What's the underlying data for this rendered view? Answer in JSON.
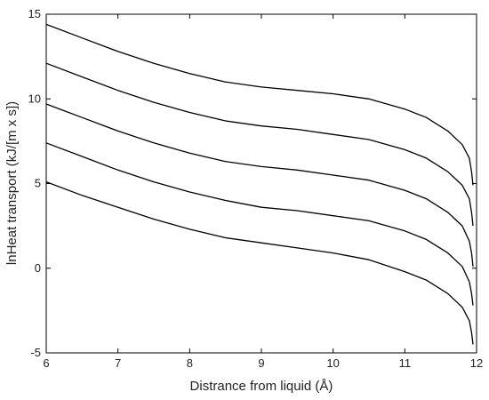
{
  "chart_data": {
    "type": "line",
    "title": "",
    "xlabel": "Distrance from liquid (Å)",
    "ylabel": "lnHeat transport (kJ/[m x s])",
    "xlim": [
      6,
      12
    ],
    "ylim": [
      -5,
      15
    ],
    "x_ticks": [
      "6",
      "7",
      "8",
      "9",
      "10",
      "11",
      "12"
    ],
    "y_ticks": [
      "-5",
      "0",
      "5",
      "10",
      "15"
    ],
    "grid": false,
    "legend": "none",
    "line_color": "#000000",
    "series": [
      {
        "x": [
          6.0,
          6.5,
          7.0,
          7.5,
          8.0,
          8.5,
          9.0,
          9.5,
          10.0,
          10.5,
          11.0,
          11.3,
          11.6,
          11.8,
          11.9,
          11.93,
          11.95
        ],
        "values": [
          14.4,
          13.6,
          12.8,
          12.1,
          11.5,
          11.0,
          10.7,
          10.5,
          10.3,
          10.0,
          9.4,
          8.9,
          8.1,
          7.3,
          6.5,
          5.7,
          4.9
        ]
      },
      {
        "x": [
          6.0,
          6.5,
          7.0,
          7.5,
          8.0,
          8.5,
          9.0,
          9.5,
          10.0,
          10.5,
          11.0,
          11.3,
          11.6,
          11.8,
          11.9,
          11.93,
          11.95
        ],
        "values": [
          12.1,
          11.3,
          10.5,
          9.8,
          9.2,
          8.7,
          8.4,
          8.2,
          7.9,
          7.6,
          7.0,
          6.5,
          5.7,
          4.9,
          4.1,
          3.3,
          2.5
        ]
      },
      {
        "x": [
          6.0,
          6.5,
          7.0,
          7.5,
          8.0,
          8.5,
          9.0,
          9.5,
          10.0,
          10.5,
          11.0,
          11.3,
          11.6,
          11.8,
          11.9,
          11.93,
          11.95
        ],
        "values": [
          9.7,
          8.9,
          8.1,
          7.4,
          6.8,
          6.3,
          6.0,
          5.8,
          5.5,
          5.2,
          4.6,
          4.1,
          3.3,
          2.5,
          1.6,
          0.9,
          0.1
        ]
      },
      {
        "x": [
          6.0,
          6.5,
          7.0,
          7.5,
          8.0,
          8.5,
          9.0,
          9.5,
          10.0,
          10.5,
          11.0,
          11.3,
          11.6,
          11.8,
          11.9,
          11.93,
          11.95
        ],
        "values": [
          7.4,
          6.6,
          5.8,
          5.1,
          4.5,
          4.0,
          3.6,
          3.4,
          3.1,
          2.8,
          2.2,
          1.7,
          0.9,
          0.1,
          -0.8,
          -1.5,
          -2.2
        ]
      },
      {
        "x": [
          6.0,
          6.5,
          7.0,
          7.5,
          8.0,
          8.5,
          9.0,
          9.5,
          10.0,
          10.5,
          11.0,
          11.3,
          11.6,
          11.8,
          11.9,
          11.93,
          11.95
        ],
        "values": [
          5.1,
          4.3,
          3.6,
          2.9,
          2.3,
          1.8,
          1.5,
          1.2,
          0.9,
          0.5,
          -0.2,
          -0.7,
          -1.5,
          -2.3,
          -3.1,
          -3.8,
          -4.5
        ]
      }
    ]
  }
}
